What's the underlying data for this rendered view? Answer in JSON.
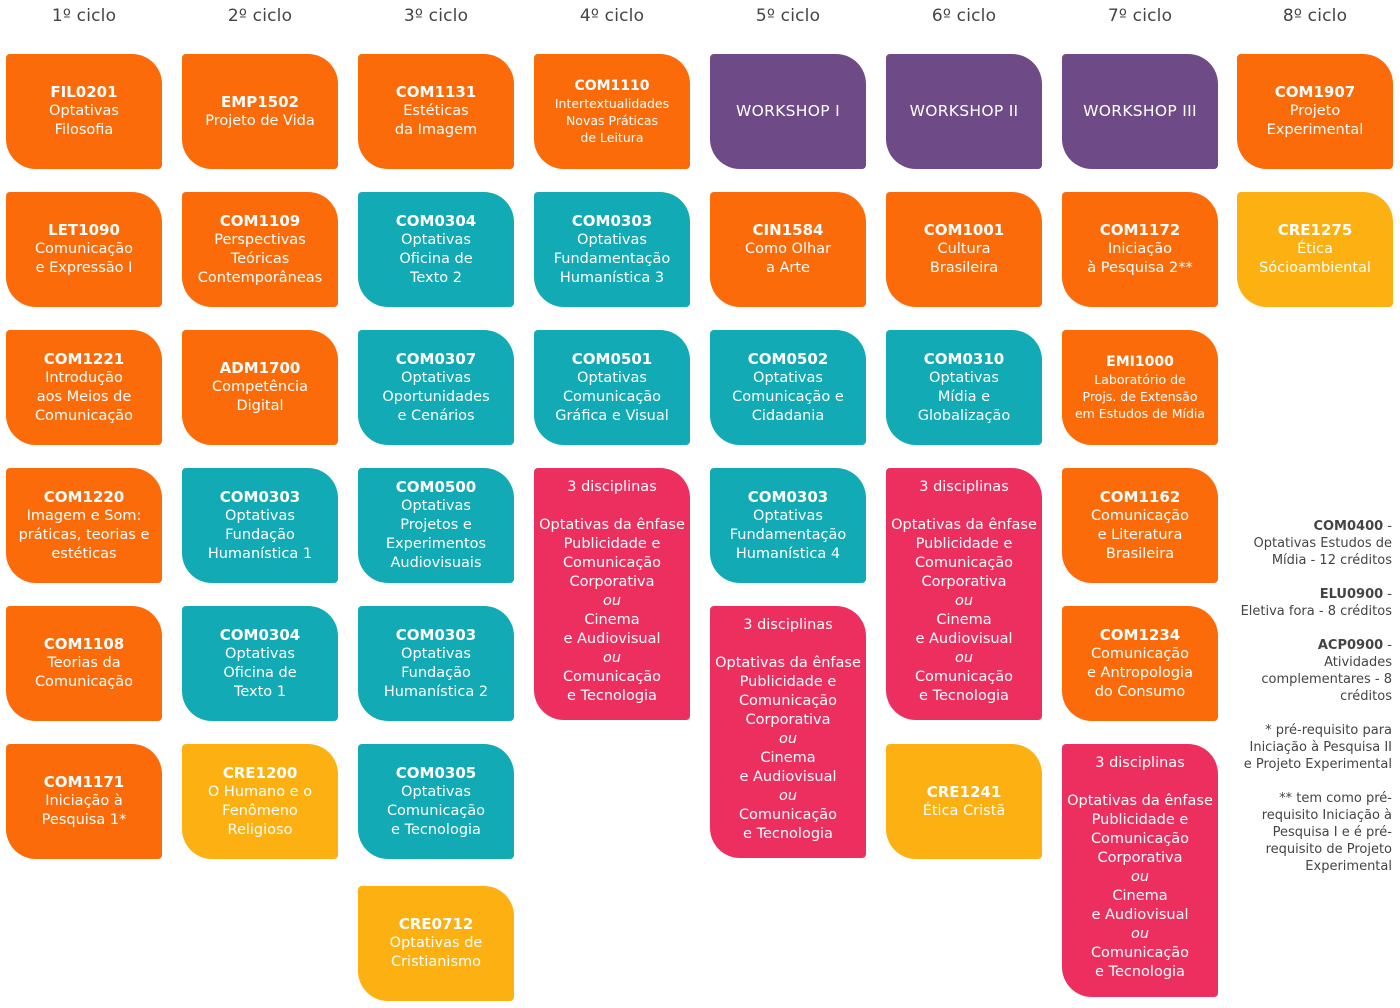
{
  "colors": {
    "orange": "#fb6b0a",
    "teal": "#12aab4",
    "purple": "#6e4a87",
    "yellow": "#fdb012",
    "pink": "#ec2f5e",
    "header_text": "#444444"
  },
  "columns": [
    {
      "title": "1º ciclo",
      "cards": [
        {
          "color": "orange",
          "code": "FIL0201",
          "lines": [
            "Optativas",
            "Filosofia"
          ]
        },
        {
          "color": "orange",
          "code": "LET1090",
          "lines": [
            "Comunicação",
            "e Expressão I"
          ]
        },
        {
          "color": "orange",
          "code": "COM1221",
          "lines": [
            "Introdução",
            "aos Meios de",
            "Comunicação"
          ]
        },
        {
          "color": "orange",
          "code": "COM1220",
          "lines": [
            "Imagem e Som:",
            "práticas, teorias e",
            "estéticas"
          ]
        },
        {
          "color": "orange",
          "code": "COM1108",
          "lines": [
            "Teorias da",
            "Comunicação"
          ]
        },
        {
          "color": "orange",
          "code": "COM1171",
          "lines": [
            "Iniciação à",
            "Pesquisa 1*"
          ]
        }
      ]
    },
    {
      "title": "2º ciclo",
      "cards": [
        {
          "color": "orange",
          "code": "EMP1502",
          "lines": [
            "Projeto de Vida"
          ]
        },
        {
          "color": "orange",
          "code": "COM1109",
          "lines": [
            "Perspectivas",
            "Teóricas",
            "Contemporâneas"
          ]
        },
        {
          "color": "orange",
          "code": "ADM1700",
          "lines": [
            "Competência",
            "Digital"
          ]
        },
        {
          "color": "teal",
          "code": "COM0303",
          "lines": [
            "Optativas",
            "Fundação",
            "Humanística 1"
          ]
        },
        {
          "color": "teal",
          "code": "COM0304",
          "lines": [
            "Optativas",
            "Oficina de",
            "Texto 1"
          ]
        },
        {
          "color": "yellow",
          "code": "CRE1200",
          "lines": [
            "O Humano e o",
            "Fenômeno",
            "Religioso"
          ]
        }
      ]
    },
    {
      "title": "3º ciclo",
      "cards": [
        {
          "color": "orange",
          "code": "COM1131",
          "lines": [
            "Estéticas",
            "da Imagem"
          ]
        },
        {
          "color": "teal",
          "code": "COM0304",
          "lines": [
            "Optativas",
            "Oficina de",
            "Texto 2"
          ]
        },
        {
          "color": "teal",
          "code": "COM0307",
          "lines": [
            "Optativas",
            "Oportunidades",
            "e Cenários"
          ]
        },
        {
          "color": "teal",
          "code": "COM0500",
          "lines": [
            "Optativas",
            "Projetos e",
            "Experimentos",
            "Audiovisuais"
          ]
        },
        {
          "color": "teal",
          "code": "COM0303",
          "lines": [
            "Optativas",
            "Fundação",
            "Humanística 2"
          ]
        },
        {
          "color": "teal",
          "code": "COM0305",
          "lines": [
            "Optativas",
            "Comunicação",
            "e Tecnologia"
          ]
        },
        {
          "color": "yellow",
          "code": "CRE0712",
          "lines": [
            "Optativas de",
            "Cristianismo"
          ]
        }
      ]
    },
    {
      "title": "4º ciclo",
      "cards": [
        {
          "color": "orange",
          "code": "COM1110",
          "lines": [
            "Intertextualidades",
            "Novas Práticas",
            "de Leitura"
          ],
          "small": true
        },
        {
          "color": "teal",
          "code": "COM0303",
          "lines": [
            "Optativas",
            "Fundamentação",
            "Humanística 3"
          ]
        },
        {
          "color": "teal",
          "code": "COM0501",
          "lines": [
            "Optativas",
            "Comunicação",
            "Gráfica e Visual"
          ]
        },
        {
          "color": "pink",
          "kind": "multi",
          "head": "3 disciplinas",
          "lines": [
            "Optativas da ênfase",
            "Publicidade e",
            "Comunicação",
            "Corporativa",
            "ou",
            "Cinema",
            "e Audiovisual",
            "ou",
            "Comunicação",
            "e Tecnologia"
          ]
        }
      ]
    },
    {
      "title": "5º ciclo",
      "cards": [
        {
          "color": "purple",
          "kind": "workshop",
          "lines": [
            "WORKSHOP I"
          ]
        },
        {
          "color": "orange",
          "code": "CIN1584",
          "lines": [
            "Como Olhar",
            "a Arte"
          ]
        },
        {
          "color": "teal",
          "code": "COM0502",
          "lines": [
            "Optativas",
            "Comunicação e",
            "Cidadania"
          ]
        },
        {
          "color": "teal",
          "code": "COM0303",
          "lines": [
            "Optativas",
            "Fundamentação",
            "Humanística 4"
          ]
        },
        {
          "color": "pink",
          "kind": "multi",
          "head": "3 disciplinas",
          "lines": [
            "Optativas da ênfase",
            "Publicidade e",
            "Comunicação",
            "Corporativa",
            "ou",
            "Cinema",
            "e Audiovisual",
            "ou",
            "Comunicação",
            "e Tecnologia"
          ]
        }
      ]
    },
    {
      "title": "6º ciclo",
      "cards": [
        {
          "color": "purple",
          "kind": "workshop",
          "lines": [
            "WORKSHOP II"
          ]
        },
        {
          "color": "orange",
          "code": "COM1001",
          "lines": [
            "Cultura",
            "Brasileira"
          ]
        },
        {
          "color": "teal",
          "code": "COM0310",
          "lines": [
            "Optativas",
            "Mídia e",
            "Globalização"
          ]
        },
        {
          "color": "pink",
          "kind": "multi",
          "head": "3 disciplinas",
          "lines": [
            "Optativas da ênfase",
            "Publicidade e",
            "Comunicação",
            "Corporativa",
            "ou",
            "Cinema",
            "e Audiovisual",
            "ou",
            "Comunicação",
            "e Tecnologia"
          ]
        },
        {
          "color": "yellow",
          "code": "CRE1241",
          "lines": [
            "Ética Cristã"
          ]
        }
      ]
    },
    {
      "title": "7º ciclo",
      "cards": [
        {
          "color": "purple",
          "kind": "workshop",
          "lines": [
            "WORKSHOP III"
          ]
        },
        {
          "color": "orange",
          "code": "COM1172",
          "lines": [
            "Iniciação",
            "à Pesquisa 2**"
          ]
        },
        {
          "color": "orange",
          "code": "EMI1000",
          "lines": [
            "Laboratório de",
            "Projs. de Extensão",
            "em Estudos de Mídia"
          ],
          "small": true
        },
        {
          "color": "orange",
          "code": "COM1162",
          "lines": [
            "Comunicação",
            "e Literatura",
            "Brasileira"
          ]
        },
        {
          "color": "orange",
          "code": "COM1234",
          "lines": [
            "Comunicação",
            "e Antropologia",
            "do Consumo"
          ]
        },
        {
          "color": "pink",
          "kind": "multi",
          "head": "3 disciplinas",
          "lines": [
            "Optativas da ênfase",
            "Publicidade e",
            "Comunicação",
            "Corporativa",
            "ou",
            "Cinema",
            "e Audiovisual",
            "ou",
            "Comunicação",
            "e Tecnologia"
          ]
        }
      ]
    },
    {
      "title": "8º ciclo",
      "cards": [
        {
          "color": "orange",
          "code": "COM1907",
          "lines": [
            "Projeto",
            "Experimental"
          ]
        },
        {
          "color": "yellow",
          "code": "CRE1275",
          "lines": [
            "Ética",
            "Sócioambiental"
          ]
        }
      ]
    }
  ],
  "notes": [
    {
      "code": "COM0400",
      "text": "Optativas Estudos de Mídia - 12 créditos"
    },
    {
      "code": "ELU0900",
      "text": "Eletiva fora - 8 créditos"
    },
    {
      "code": "ACP0900",
      "text": "Atividades complementares - 8 créditos"
    },
    {
      "code": "",
      "text": "* pré-requisito para Iniciação à Pesquisa II e Projeto Experimental"
    },
    {
      "code": "",
      "text": "** tem como pré-requisito Iniciação à Pesquisa I e é pré-requisito de Projeto Experimental"
    }
  ]
}
